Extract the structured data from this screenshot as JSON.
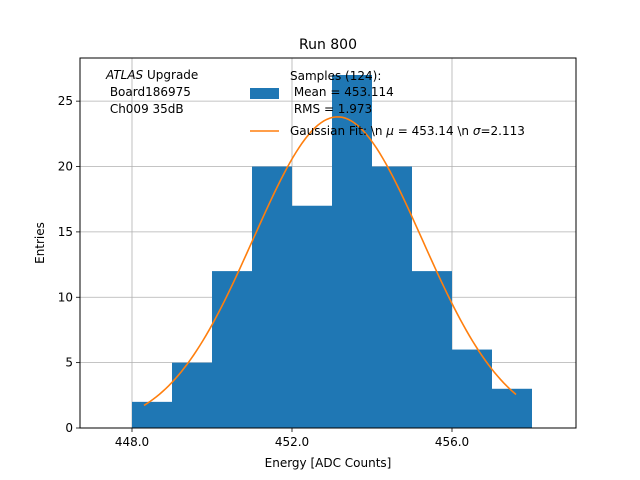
{
  "chart_data": {
    "type": "bar",
    "title": "Run 800",
    "xlabel": "Energy [ADC Counts]",
    "ylabel": "Entries",
    "xlim": [
      446.7,
      459.1
    ],
    "ylim": [
      0,
      28.3
    ],
    "grid": true,
    "x_ticks": [
      448,
      452,
      456
    ],
    "x_tick_labels": [
      "448.0",
      "452.0",
      "456.0"
    ],
    "y_ticks": [
      0,
      5,
      10,
      15,
      20,
      25
    ],
    "y_tick_labels": [
      "0",
      "5",
      "10",
      "15",
      "20",
      "25"
    ],
    "histogram": {
      "bin_edges": [
        448,
        449,
        450,
        451,
        452,
        453,
        454,
        455,
        456,
        457,
        458
      ],
      "counts": [
        2,
        5,
        12,
        20,
        17,
        27,
        20,
        12,
        6,
        3
      ],
      "color": "#1f77b4"
    },
    "fit": {
      "type": "gaussian",
      "mu": 453.14,
      "sigma": 2.113,
      "amplitude": 23.8,
      "x_range": [
        448.3,
        457.6
      ],
      "color": "#ff7f0e"
    },
    "annotation": {
      "italic": "ATLAS",
      "rest": " Upgrade",
      "line2": " Board186975",
      "line3": " Ch009 35dB"
    },
    "legend": {
      "position": "top-right",
      "hist_lines": [
        "Samples (124):",
        " Mean = 453.114",
        " RMS = 1.973"
      ],
      "fit_label_prefix": "Gaussian Fit: \\n ",
      "fit_mu_symbol": "μ",
      "fit_mu_value": " = 453.14 \\n ",
      "fit_sigma_symbol": "σ",
      "fit_sigma_value": "=2.113"
    }
  }
}
